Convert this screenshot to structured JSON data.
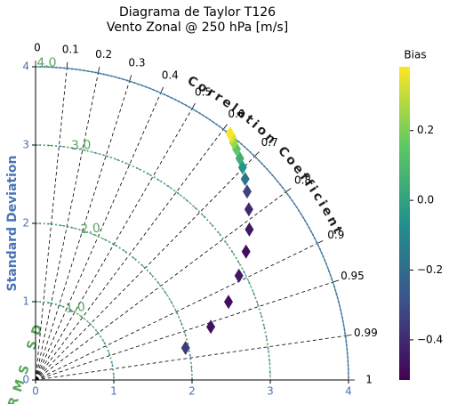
{
  "chart_data": {
    "type": "taylor",
    "title": "Diagrama de Taylor T126",
    "subtitle": "Vento Zonal @ 250 hPa [m/s]",
    "ylabel": "Standard Deviation",
    "corr_label": "Correlation Coefficient",
    "rms_label": "RMS SD",
    "colorbar_label": "Bias",
    "colormap": "viridis",
    "stdlim": [
      0,
      4
    ],
    "stdticks": [
      0,
      1,
      2,
      3,
      4
    ],
    "corrticks": [
      0,
      0.1,
      0.2,
      0.3,
      0.4,
      0.5,
      0.6,
      0.7,
      0.8,
      0.9,
      0.95,
      0.99,
      1
    ],
    "rms_levels": [
      {
        "value": 1,
        "label": "1.0"
      },
      {
        "value": 2,
        "label": "2.0"
      },
      {
        "value": 3,
        "label": "3.0"
      },
      {
        "value": 4,
        "label": "4.0"
      }
    ],
    "colorlim": [
      -0.515,
      0.383
    ],
    "colorticks": [
      {
        "value": -0.4,
        "label": "−0.4"
      },
      {
        "value": -0.2,
        "label": "−0.2"
      },
      {
        "value": 0,
        "label": "0.0"
      },
      0.2
    ],
    "points": {
      "std": [
        1.96,
        2.34,
        2.66,
        2.92,
        3.15,
        3.34,
        3.49,
        3.62,
        3.71,
        3.79,
        3.85,
        3.91,
        3.95,
        3.99,
        4.01
      ],
      "corr": [
        0.978,
        0.957,
        0.927,
        0.89,
        0.854,
        0.818,
        0.781,
        0.747,
        0.722,
        0.698,
        0.678,
        0.657,
        0.641,
        0.629,
        0.62
      ],
      "bias": [
        -0.35,
        -0.47,
        -0.48,
        -0.45,
        -0.48,
        -0.45,
        -0.4,
        -0.33,
        -0.17,
        -0.05,
        0.05,
        0.15,
        0.25,
        0.33,
        0.38
      ]
    }
  }
}
